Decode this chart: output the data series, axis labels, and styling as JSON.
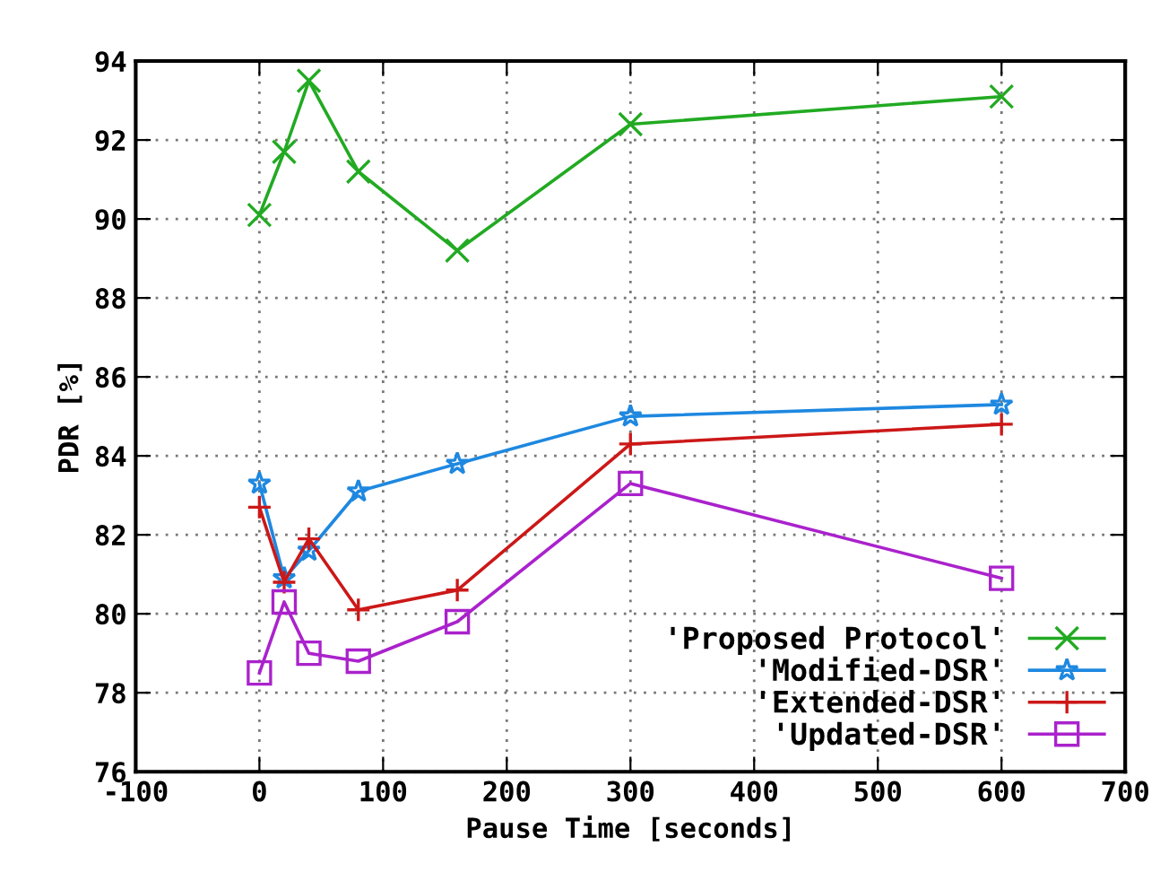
{
  "chart_data": {
    "type": "line",
    "xlabel": "Pause Time [seconds]",
    "ylabel": "PDR [%]",
    "x": [
      0,
      20,
      40,
      80,
      160,
      300,
      600
    ],
    "series": [
      {
        "name": "'Proposed Protocol'",
        "color": "#22aa22",
        "marker": "cross",
        "values": [
          90.1,
          91.7,
          93.5,
          91.2,
          89.2,
          92.4,
          93.1
        ]
      },
      {
        "name": "'Modified-DSR'",
        "color": "#1e88e0",
        "marker": "star",
        "values": [
          83.3,
          80.9,
          81.6,
          83.1,
          83.8,
          85.0,
          85.3
        ]
      },
      {
        "name": "'Extended-DSR'",
        "color": "#cc1818",
        "marker": "plus",
        "values": [
          82.7,
          80.8,
          81.9,
          80.1,
          80.6,
          84.3,
          84.8
        ]
      },
      {
        "name": "'Updated-DSR'",
        "color": "#aa22cc",
        "marker": "square",
        "values": [
          78.5,
          80.3,
          79.0,
          78.8,
          79.8,
          83.3,
          80.9
        ]
      }
    ],
    "xlim": [
      -100,
      700
    ],
    "xticks": [
      -100,
      0,
      100,
      200,
      300,
      400,
      500,
      600,
      700
    ],
    "ylim": [
      76,
      94
    ],
    "yticks": [
      76,
      78,
      80,
      82,
      84,
      86,
      88,
      90,
      92,
      94
    ],
    "grid": true,
    "legend": "bottom right",
    "line_style": "solid"
  }
}
